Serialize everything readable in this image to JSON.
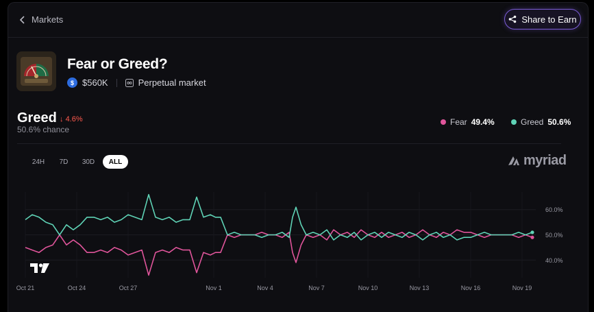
{
  "nav": {
    "back_label": "Markets"
  },
  "share": {
    "label": "Share to Earn"
  },
  "market": {
    "title": "Fear or Greed?",
    "volume": "$560K",
    "type": "Perpetual market"
  },
  "outcome": {
    "label": "Greed",
    "change": "4.6%",
    "chance": "50.6% chance"
  },
  "legend": [
    {
      "name": "Fear",
      "value": "49.4%",
      "color": "#e0559b"
    },
    {
      "name": "Greed",
      "value": "50.6%",
      "color": "#5fd3b6"
    }
  ],
  "timeframes": [
    "24H",
    "7D",
    "30D",
    "ALL"
  ],
  "selected_timeframe": "ALL",
  "brand": {
    "name": "myriad"
  },
  "chart_data": {
    "type": "line",
    "title": "",
    "xlabel": "",
    "ylabel": "",
    "x_ticks": [
      "Oct 21",
      "Oct 24",
      "Oct 27",
      "Nov 1",
      "Nov 4",
      "Nov 7",
      "Nov 10",
      "Nov 13",
      "Nov 16",
      "Nov 19"
    ],
    "y_ticks": [
      "60.0%",
      "50.0%",
      "40.0%"
    ],
    "ylim": [
      33,
      67
    ],
    "x_days": [
      0,
      3,
      6,
      11,
      14,
      17,
      20,
      23,
      26,
      29
    ],
    "xlim": [
      0,
      29.8
    ],
    "x": [
      0,
      0.4,
      0.8,
      1.2,
      1.6,
      2.0,
      2.4,
      2.8,
      3.2,
      3.6,
      4.0,
      4.4,
      4.8,
      5.2,
      5.6,
      6.0,
      6.4,
      6.8,
      7.2,
      7.6,
      8.0,
      8.4,
      8.8,
      9.2,
      9.6,
      10.0,
      10.4,
      10.8,
      11.1,
      11.4,
      11.8,
      12.2,
      12.6,
      13.0,
      13.4,
      13.8,
      14.2,
      14.6,
      15.0,
      15.4,
      15.6,
      15.8,
      16.1,
      16.4,
      16.8,
      17.2,
      17.6,
      18.0,
      18.4,
      18.8,
      19.2,
      19.6,
      20.0,
      20.4,
      20.8,
      21.2,
      21.6,
      22.0,
      22.4,
      22.8,
      23.2,
      23.6,
      24.0,
      24.4,
      24.8,
      25.2,
      25.6,
      26.0,
      26.4,
      26.8,
      27.2,
      27.6,
      28.0,
      28.4,
      28.8,
      29.2,
      29.6
    ],
    "series": [
      {
        "name": "Greed",
        "color": "#5fd3b6",
        "values": [
          56,
          58,
          57,
          55,
          54,
          50,
          54,
          52,
          54,
          57,
          57,
          56,
          57,
          55,
          56,
          58,
          57,
          56,
          66,
          57,
          56,
          57,
          55,
          56,
          56,
          65,
          57,
          58,
          57,
          57,
          50,
          51,
          50,
          50,
          50,
          49,
          50,
          50,
          51,
          49,
          57,
          61,
          54,
          50,
          51,
          50,
          52,
          48,
          50,
          49,
          51,
          48,
          50,
          51,
          49,
          51,
          50,
          49,
          51,
          50,
          48,
          50,
          51,
          49,
          50,
          48,
          49,
          49,
          50,
          51,
          50,
          50,
          50,
          50,
          51,
          50,
          51
        ]
      },
      {
        "name": "Fear",
        "color": "#e0559b",
        "values": [
          45,
          44,
          43,
          45,
          46,
          50,
          46,
          48,
          46,
          43,
          43,
          44,
          43,
          45,
          44,
          42,
          43,
          44,
          34,
          43,
          44,
          43,
          45,
          44,
          44,
          35,
          43,
          42,
          43,
          43,
          50,
          49,
          50,
          50,
          50,
          51,
          50,
          50,
          49,
          51,
          43,
          39,
          46,
          50,
          49,
          50,
          48,
          52,
          50,
          51,
          49,
          52,
          50,
          49,
          51,
          49,
          50,
          51,
          49,
          50,
          52,
          50,
          49,
          51,
          50,
          52,
          51,
          51,
          50,
          49,
          50,
          50,
          50,
          50,
          49,
          50,
          49
        ]
      }
    ]
  }
}
